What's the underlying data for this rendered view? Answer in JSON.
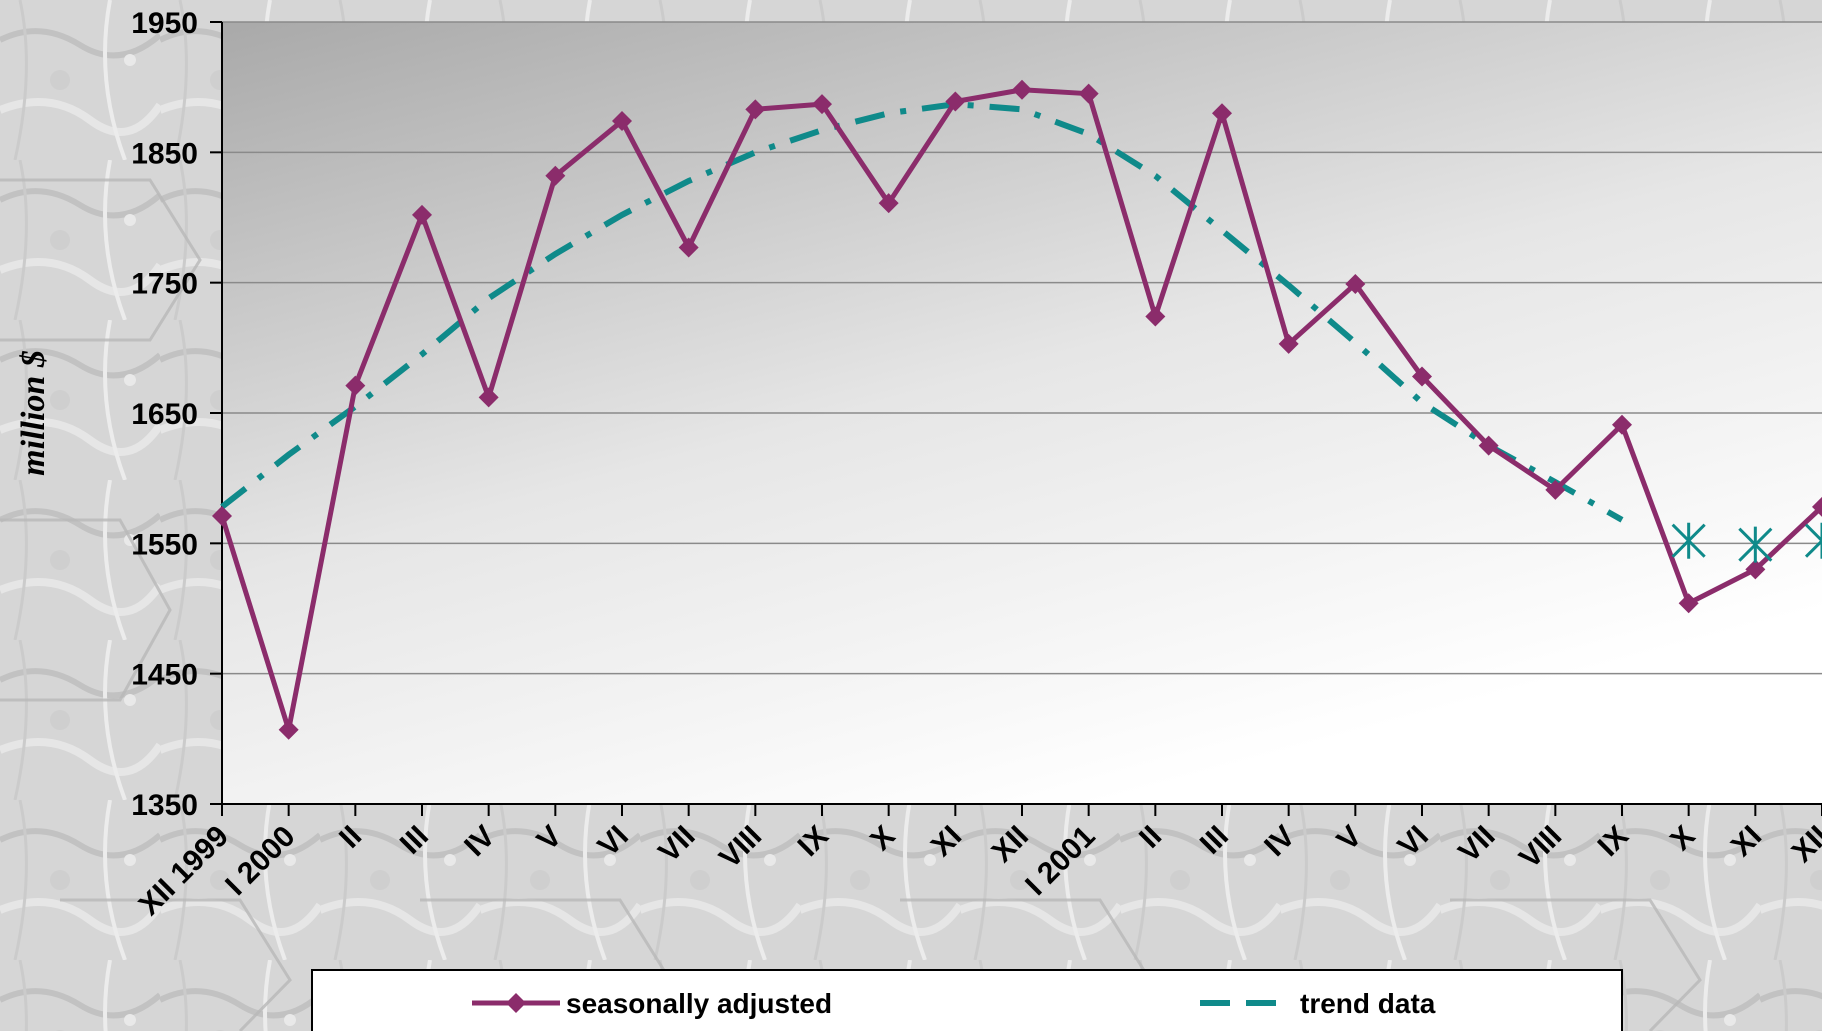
{
  "chart_data": {
    "type": "line",
    "ylabel": "million $",
    "ylim": [
      1350,
      1950
    ],
    "yticks": [
      1350,
      1450,
      1550,
      1650,
      1750,
      1850,
      1950
    ],
    "grid": true,
    "legend_position": "bottom",
    "categories": [
      "XII 1999",
      "I 2000",
      "II",
      "III",
      "IV",
      "V",
      "VI",
      "VII",
      "VIII",
      "IX",
      "X",
      "XI",
      "XII",
      "I 2001",
      "II",
      "III",
      "IV",
      "V",
      "VI",
      "VII",
      "VIII",
      "IX",
      "X",
      "XI",
      "XII"
    ],
    "series": [
      {
        "name": "seasonally adjusted",
        "color": "#8b2c6b",
        "marker": "diamond",
        "values": [
          1571,
          1407,
          1671,
          1802,
          1662,
          1832,
          1874,
          1777,
          1883,
          1887,
          1811,
          1889,
          1898,
          1895,
          1724,
          1880,
          1703,
          1749,
          1678,
          1625,
          1591,
          1641,
          1504,
          1530,
          1578
        ]
      },
      {
        "name": "trend data",
        "color": "#0f8a8a",
        "style": "dashed",
        "values": [
          1578,
          1618,
          1655,
          1695,
          1738,
          1772,
          1802,
          1828,
          1850,
          1867,
          1880,
          1887,
          1883,
          1864,
          1832,
          1790,
          1748,
          1704,
          1658,
          1625,
          1597,
          1568,
          null,
          null,
          null
        ]
      },
      {
        "name": "",
        "color": "#0f8a8a",
        "marker": "asterisk",
        "values": [
          null,
          null,
          null,
          null,
          null,
          null,
          null,
          null,
          null,
          null,
          null,
          null,
          null,
          null,
          null,
          null,
          null,
          null,
          null,
          null,
          null,
          null,
          1552,
          1549,
          1552
        ]
      }
    ]
  }
}
